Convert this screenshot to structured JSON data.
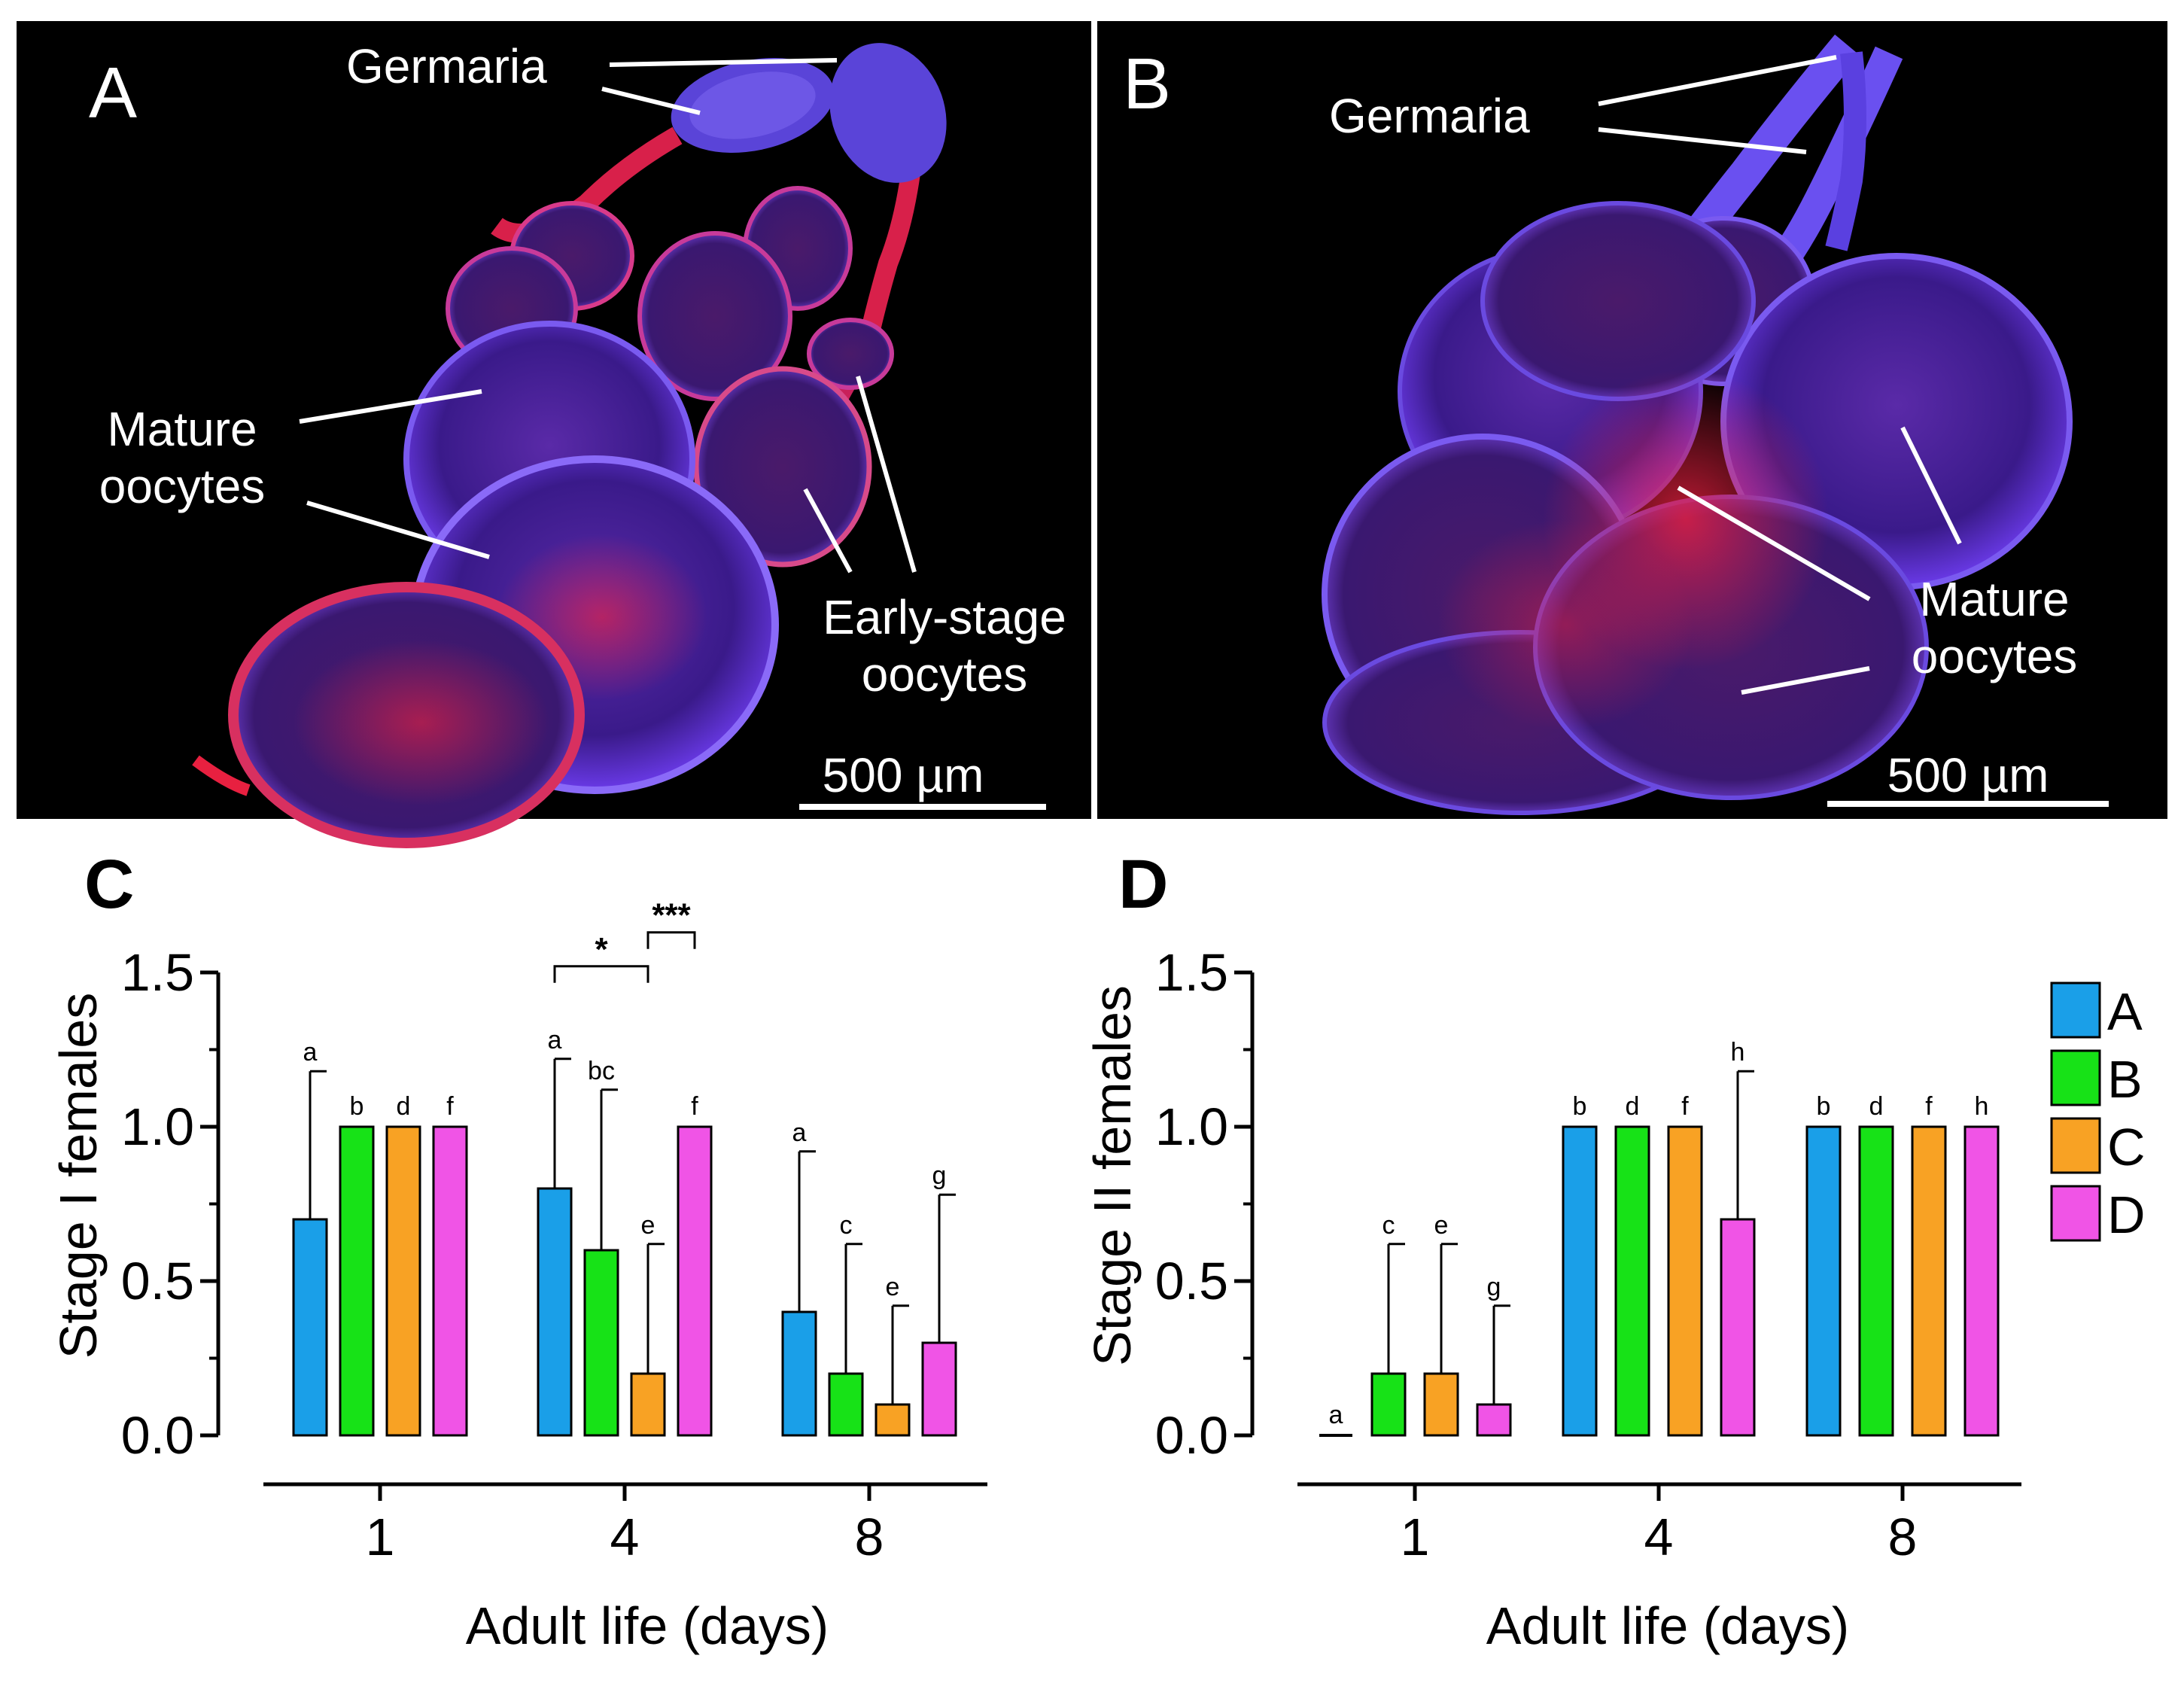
{
  "panels": {
    "A": {
      "letter": "A",
      "labels": {
        "germaria": "Germaria",
        "mature": [
          "Mature",
          "oocytes"
        ],
        "early": [
          "Early-stage",
          "oocytes"
        ]
      },
      "scale_bar": "500 µm"
    },
    "B": {
      "letter": "B",
      "labels": {
        "germaria": "Germaria",
        "mature": [
          "Mature",
          "oocytes"
        ]
      },
      "scale_bar": "500 µm"
    }
  },
  "legend": {
    "entries": [
      {
        "label": "A",
        "color": "#1a9fe8"
      },
      {
        "label": "B",
        "color": "#17e217"
      },
      {
        "label": "C",
        "color": "#f8a224"
      },
      {
        "label": "D",
        "color": "#f054e6"
      }
    ]
  },
  "chart_data": [
    {
      "panel_letter": "C",
      "type": "bar",
      "ylabel": "Stage I females",
      "xlabel": "Adult life (days)",
      "categories": [
        "1",
        "4",
        "8"
      ],
      "ylim": [
        0,
        1.5
      ],
      "yticks": [
        "0.0",
        "0.5",
        "1.0",
        "1.5"
      ],
      "series": [
        {
          "name": "A",
          "values": [
            0.7,
            0.8,
            0.4
          ],
          "errors": [
            0.48,
            0.42,
            0.52
          ],
          "letters": [
            "a",
            "a",
            "a"
          ]
        },
        {
          "name": "B",
          "values": [
            1.0,
            0.6,
            0.2
          ],
          "errors": [
            0,
            0.52,
            0.42
          ],
          "letters": [
            "b",
            "bc",
            "c"
          ]
        },
        {
          "name": "C",
          "values": [
            1.0,
            0.2,
            0.1
          ],
          "errors": [
            0,
            0.42,
            0.32
          ],
          "letters": [
            "d",
            "e",
            "e"
          ]
        },
        {
          "name": "D",
          "values": [
            1.0,
            1.0,
            0.3
          ],
          "errors": [
            0,
            0,
            0.48
          ],
          "letters": [
            "f",
            "f",
            "g"
          ]
        }
      ],
      "significance": [
        {
          "category": "4",
          "from": "A",
          "to": "C",
          "label": "*",
          "level": 1.52
        },
        {
          "category": "4",
          "from": "C",
          "to": "D",
          "label": "***",
          "level": 1.63
        }
      ]
    },
    {
      "panel_letter": "D",
      "type": "bar",
      "ylabel": "Stage II females",
      "xlabel": "Adult life (days)",
      "categories": [
        "1",
        "4",
        "8"
      ],
      "ylim": [
        0,
        1.5
      ],
      "yticks": [
        "0.0",
        "0.5",
        "1.0",
        "1.5"
      ],
      "series": [
        {
          "name": "A",
          "values": [
            0.0,
            1.0,
            1.0
          ],
          "errors": [
            0,
            0,
            0
          ],
          "letters": [
            "a",
            "b",
            "b"
          ]
        },
        {
          "name": "B",
          "values": [
            0.2,
            1.0,
            1.0
          ],
          "errors": [
            0.42,
            0,
            0
          ],
          "letters": [
            "c",
            "d",
            "d"
          ]
        },
        {
          "name": "C",
          "values": [
            0.2,
            1.0,
            1.0
          ],
          "errors": [
            0.42,
            0,
            0
          ],
          "letters": [
            "e",
            "f",
            "f"
          ]
        },
        {
          "name": "D",
          "values": [
            0.1,
            0.7,
            1.0
          ],
          "errors": [
            0.32,
            0.48,
            0
          ],
          "letters": [
            "g",
            "h",
            "h"
          ]
        }
      ],
      "significance": []
    }
  ]
}
